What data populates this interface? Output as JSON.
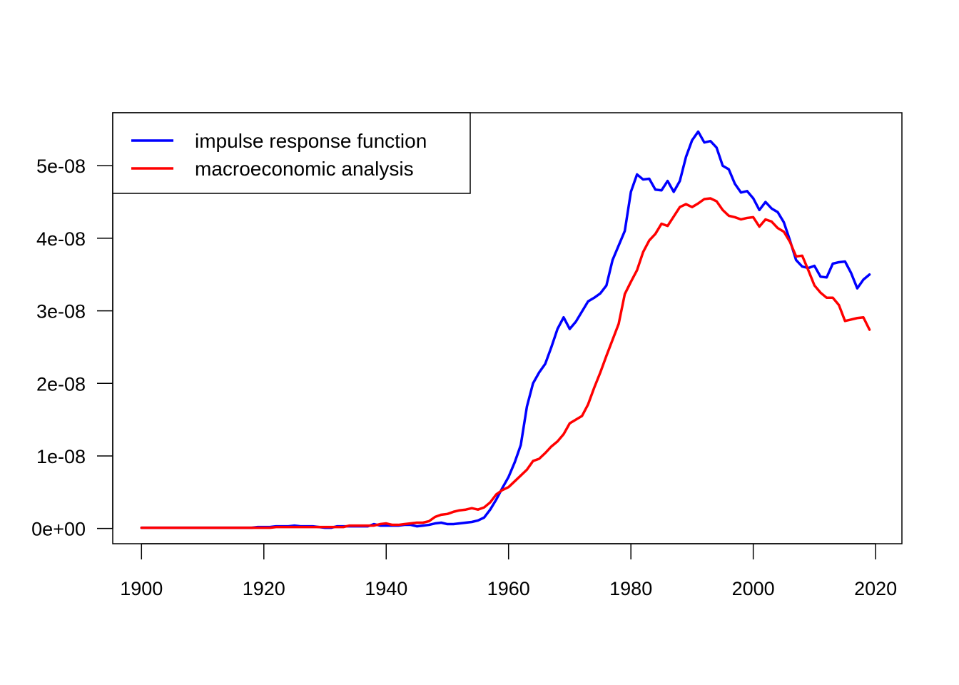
{
  "chart_data": {
    "type": "line",
    "title": "",
    "xlabel": "",
    "ylabel": "",
    "xlim": [
      1895.3,
      2024.3
    ],
    "ylim": [
      -2.1e-09,
      5.73e-08
    ],
    "x_ticks": [
      1900,
      1920,
      1940,
      1960,
      1980,
      2000,
      2020
    ],
    "x_tick_labels": [
      "1900",
      "1920",
      "1940",
      "1960",
      "1980",
      "2000",
      "2020"
    ],
    "y_ticks": [
      0,
      1e-08,
      2e-08,
      3e-08,
      4e-08,
      5e-08
    ],
    "y_tick_labels": [
      "0e+00",
      "1e-08",
      "2e-08",
      "3e-08",
      "4e-08",
      "5e-08"
    ],
    "grid": false,
    "legend_position": "top-left",
    "x": [
      1900,
      1901,
      1902,
      1903,
      1904,
      1905,
      1906,
      1907,
      1908,
      1909,
      1910,
      1911,
      1912,
      1913,
      1914,
      1915,
      1916,
      1917,
      1918,
      1919,
      1920,
      1921,
      1922,
      1923,
      1924,
      1925,
      1926,
      1927,
      1928,
      1929,
      1930,
      1931,
      1932,
      1933,
      1934,
      1935,
      1936,
      1937,
      1938,
      1939,
      1940,
      1941,
      1942,
      1943,
      1944,
      1945,
      1946,
      1947,
      1948,
      1949,
      1950,
      1951,
      1952,
      1953,
      1954,
      1955,
      1956,
      1957,
      1958,
      1959,
      1960,
      1961,
      1962,
      1963,
      1964,
      1965,
      1966,
      1967,
      1968,
      1969,
      1970,
      1971,
      1972,
      1973,
      1974,
      1975,
      1976,
      1977,
      1978,
      1979,
      1980,
      1981,
      1982,
      1983,
      1984,
      1985,
      1986,
      1987,
      1988,
      1989,
      1990,
      1991,
      1992,
      1993,
      1994,
      1995,
      1996,
      1997,
      1998,
      1999,
      2000,
      2001,
      2002,
      2003,
      2004,
      2005,
      2006,
      2007,
      2008,
      2009,
      2010,
      2011,
      2012,
      2013,
      2014,
      2015,
      2016,
      2017,
      2018,
      2019
    ],
    "series": [
      {
        "name": "impulse response function",
        "color": "#0000ff",
        "values": [
          1e-10,
          1e-10,
          1e-10,
          1e-10,
          1e-10,
          1e-10,
          1e-10,
          1e-10,
          1e-10,
          1e-10,
          1e-10,
          1e-10,
          1e-10,
          1e-10,
          1e-10,
          1e-10,
          1e-10,
          1e-10,
          1e-10,
          2e-10,
          2e-10,
          2e-10,
          3e-10,
          3e-10,
          3e-10,
          4e-10,
          3e-10,
          3e-10,
          3e-10,
          2e-10,
          1e-10,
          1e-10,
          3e-10,
          3e-10,
          3e-10,
          3e-10,
          3e-10,
          3e-10,
          6e-10,
          4e-10,
          4e-10,
          4e-10,
          4e-10,
          5e-10,
          5e-10,
          3e-10,
          4e-10,
          5e-10,
          7e-10,
          8e-10,
          6e-10,
          6e-10,
          7e-10,
          8e-10,
          9e-10,
          1.1e-09,
          1.5e-09,
          2.6e-09,
          4e-09,
          5.6e-09,
          7.1e-09,
          9.1e-09,
          1.15e-08,
          1.68e-08,
          2e-08,
          2.15e-08,
          2.27e-08,
          2.5e-08,
          2.75e-08,
          2.91e-08,
          2.75e-08,
          2.85e-08,
          2.99e-08,
          3.13e-08,
          3.18e-08,
          3.24e-08,
          3.35e-08,
          3.7e-08,
          3.9e-08,
          4.1e-08,
          4.64e-08,
          4.88e-08,
          4.81e-08,
          4.82e-08,
          4.67e-08,
          4.66e-08,
          4.79e-08,
          4.64e-08,
          4.79e-08,
          5.12e-08,
          5.35e-08,
          5.47e-08,
          5.32e-08,
          5.34e-08,
          5.25e-08,
          5e-08,
          4.95e-08,
          4.75e-08,
          4.63e-08,
          4.65e-08,
          4.55e-08,
          4.39e-08,
          4.5e-08,
          4.41e-08,
          4.36e-08,
          4.22e-08,
          3.97e-08,
          3.7e-08,
          3.61e-08,
          3.59e-08,
          3.62e-08,
          3.47e-08,
          3.46e-08,
          3.65e-08,
          3.67e-08,
          3.68e-08,
          3.52e-08,
          3.31e-08,
          3.43e-08,
          3.5e-08
        ]
      },
      {
        "name": "macroeconomic analysis",
        "color": "#ff0000",
        "values": [
          1e-10,
          1e-10,
          1e-10,
          1e-10,
          1e-10,
          1e-10,
          1e-10,
          1e-10,
          1e-10,
          1e-10,
          1e-10,
          1e-10,
          1e-10,
          1e-10,
          1e-10,
          1e-10,
          1e-10,
          1e-10,
          1e-10,
          1e-10,
          1e-10,
          1e-10,
          2e-10,
          2e-10,
          2e-10,
          2e-10,
          2e-10,
          2e-10,
          2e-10,
          2e-10,
          2e-10,
          2e-10,
          2e-10,
          2e-10,
          4e-10,
          4e-10,
          4e-10,
          4e-10,
          4e-10,
          6e-10,
          7e-10,
          5e-10,
          5e-10,
          6e-10,
          7e-10,
          8e-10,
          8e-10,
          1e-09,
          1.6e-09,
          1.9e-09,
          2e-09,
          2.3e-09,
          2.5e-09,
          2.6e-09,
          2.8e-09,
          2.6e-09,
          2.9e-09,
          3.6e-09,
          4.7e-09,
          5.3e-09,
          5.7e-09,
          6.5e-09,
          7.3e-09,
          8.1e-09,
          9.3e-09,
          9.6e-09,
          1.04e-08,
          1.13e-08,
          1.2e-08,
          1.3e-08,
          1.45e-08,
          1.5e-08,
          1.55e-08,
          1.71e-08,
          1.94e-08,
          2.15e-08,
          2.38e-08,
          2.6e-08,
          2.82e-08,
          3.23e-08,
          3.4e-08,
          3.56e-08,
          3.81e-08,
          3.97e-08,
          4.06e-08,
          4.2e-08,
          4.17e-08,
          4.3e-08,
          4.43e-08,
          4.47e-08,
          4.43e-08,
          4.48e-08,
          4.54e-08,
          4.55e-08,
          4.51e-08,
          4.39e-08,
          4.31e-08,
          4.29e-08,
          4.26e-08,
          4.28e-08,
          4.29e-08,
          4.16e-08,
          4.26e-08,
          4.23e-08,
          4.14e-08,
          4.09e-08,
          3.95e-08,
          3.75e-08,
          3.76e-08,
          3.56e-08,
          3.35e-08,
          3.25e-08,
          3.18e-08,
          3.18e-08,
          3.08e-08,
          2.86e-08,
          2.88e-08,
          2.9e-08,
          2.91e-08,
          2.74e-08
        ]
      }
    ]
  }
}
